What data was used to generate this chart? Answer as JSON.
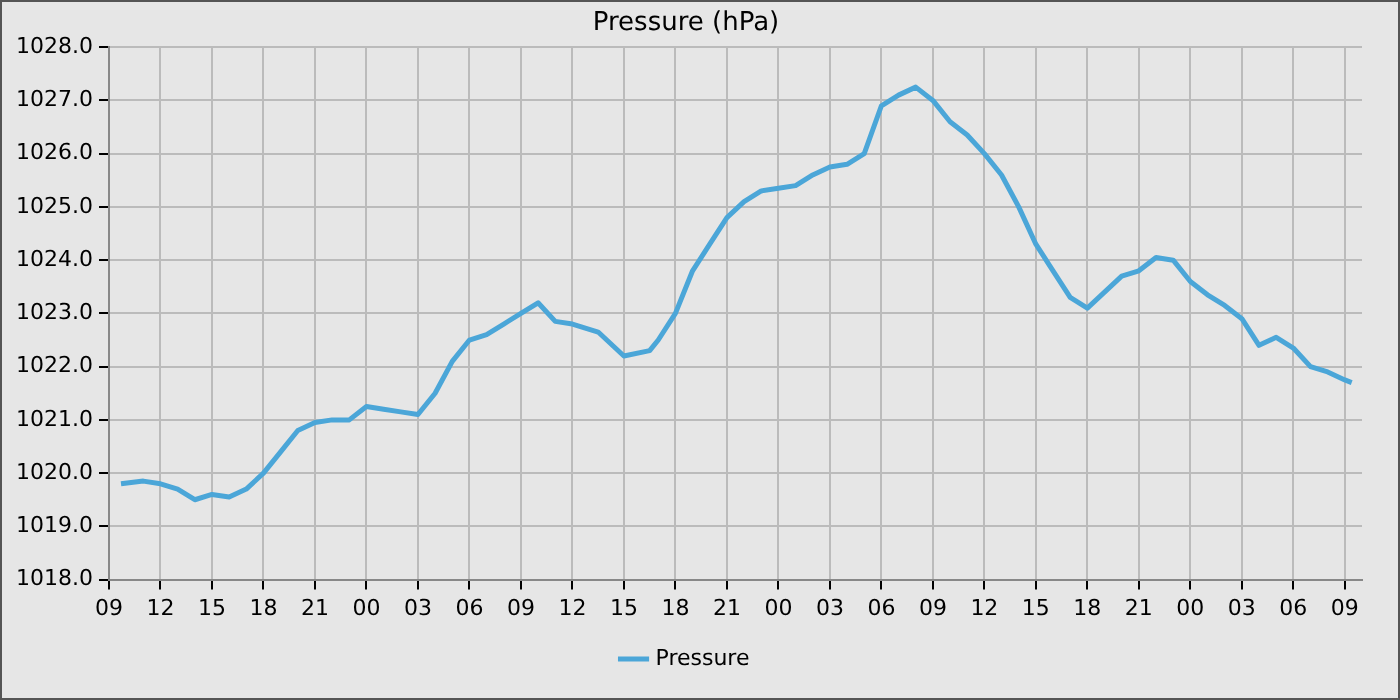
{
  "chart_data": {
    "type": "line",
    "title": "Pressure (hPa)",
    "x": [
      9.7,
      11,
      12,
      13,
      14,
      15,
      16,
      17,
      18,
      19,
      20,
      21,
      22,
      23,
      24,
      25,
      26,
      27,
      28,
      29,
      30,
      31,
      32,
      33,
      34,
      35,
      36,
      37.5,
      39,
      40.5,
      41,
      42,
      43,
      44,
      45,
      46,
      47,
      48,
      49,
      50,
      51,
      52,
      53,
      54,
      55,
      56,
      57,
      58,
      59,
      60,
      61,
      62,
      63,
      64,
      65,
      66,
      67,
      68,
      69,
      70,
      71,
      72,
      73,
      74,
      75,
      76,
      77,
      78,
      79,
      80,
      81,
      81.4
    ],
    "series": [
      {
        "name": "Pressure",
        "color": "#4ba6d8",
        "values": [
          1019.8,
          1019.85,
          1019.8,
          1019.7,
          1019.5,
          1019.6,
          1019.55,
          1019.7,
          1020.0,
          1020.4,
          1020.8,
          1020.95,
          1021.0,
          1021.0,
          1021.25,
          1021.2,
          1021.15,
          1021.1,
          1021.5,
          1022.1,
          1022.5,
          1022.6,
          1022.8,
          1023.0,
          1023.2,
          1022.85,
          1022.8,
          1022.65,
          1022.2,
          1022.3,
          1022.5,
          1023.0,
          1023.8,
          1024.3,
          1024.8,
          1025.1,
          1025.3,
          1025.35,
          1025.4,
          1025.6,
          1025.75,
          1025.8,
          1026.0,
          1026.9,
          1027.1,
          1027.25,
          1027.0,
          1026.6,
          1026.35,
          1026.0,
          1025.6,
          1025.0,
          1024.3,
          1023.8,
          1023.3,
          1023.1,
          1023.4,
          1023.7,
          1023.8,
          1024.05,
          1024.0,
          1023.6,
          1023.35,
          1023.15,
          1022.9,
          1022.4,
          1022.55,
          1022.35,
          1022.0,
          1021.9,
          1021.75,
          1021.7
        ]
      }
    ],
    "xlim": [
      9,
      82
    ],
    "xticks": [
      {
        "value": 9,
        "label": "09"
      },
      {
        "value": 12,
        "label": "12"
      },
      {
        "value": 15,
        "label": "15"
      },
      {
        "value": 18,
        "label": "18"
      },
      {
        "value": 21,
        "label": "21"
      },
      {
        "value": 24,
        "label": "00"
      },
      {
        "value": 27,
        "label": "03"
      },
      {
        "value": 30,
        "label": "06"
      },
      {
        "value": 33,
        "label": "09"
      },
      {
        "value": 36,
        "label": "12"
      },
      {
        "value": 39,
        "label": "15"
      },
      {
        "value": 42,
        "label": "18"
      },
      {
        "value": 45,
        "label": "21"
      },
      {
        "value": 48,
        "label": "00"
      },
      {
        "value": 51,
        "label": "03"
      },
      {
        "value": 54,
        "label": "06"
      },
      {
        "value": 57,
        "label": "09"
      },
      {
        "value": 60,
        "label": "12"
      },
      {
        "value": 63,
        "label": "15"
      },
      {
        "value": 66,
        "label": "18"
      },
      {
        "value": 69,
        "label": "21"
      },
      {
        "value": 72,
        "label": "00"
      },
      {
        "value": 75,
        "label": "03"
      },
      {
        "value": 78,
        "label": "06"
      },
      {
        "value": 81,
        "label": "09"
      }
    ],
    "ylim": [
      1018,
      1028
    ],
    "yticks": [
      {
        "value": 1018,
        "label": "1018.0"
      },
      {
        "value": 1019,
        "label": "1019.0"
      },
      {
        "value": 1020,
        "label": "1020.0"
      },
      {
        "value": 1021,
        "label": "1021.0"
      },
      {
        "value": 1022,
        "label": "1022.0"
      },
      {
        "value": 1023,
        "label": "1023.0"
      },
      {
        "value": 1024,
        "label": "1024.0"
      },
      {
        "value": 1025,
        "label": "1025.0"
      },
      {
        "value": 1026,
        "label": "1026.0"
      },
      {
        "value": 1027,
        "label": "1027.0"
      },
      {
        "value": 1028,
        "label": "1028.0"
      }
    ],
    "grid": true,
    "legend": "bottom",
    "marker": "none",
    "line_style": "solid"
  }
}
